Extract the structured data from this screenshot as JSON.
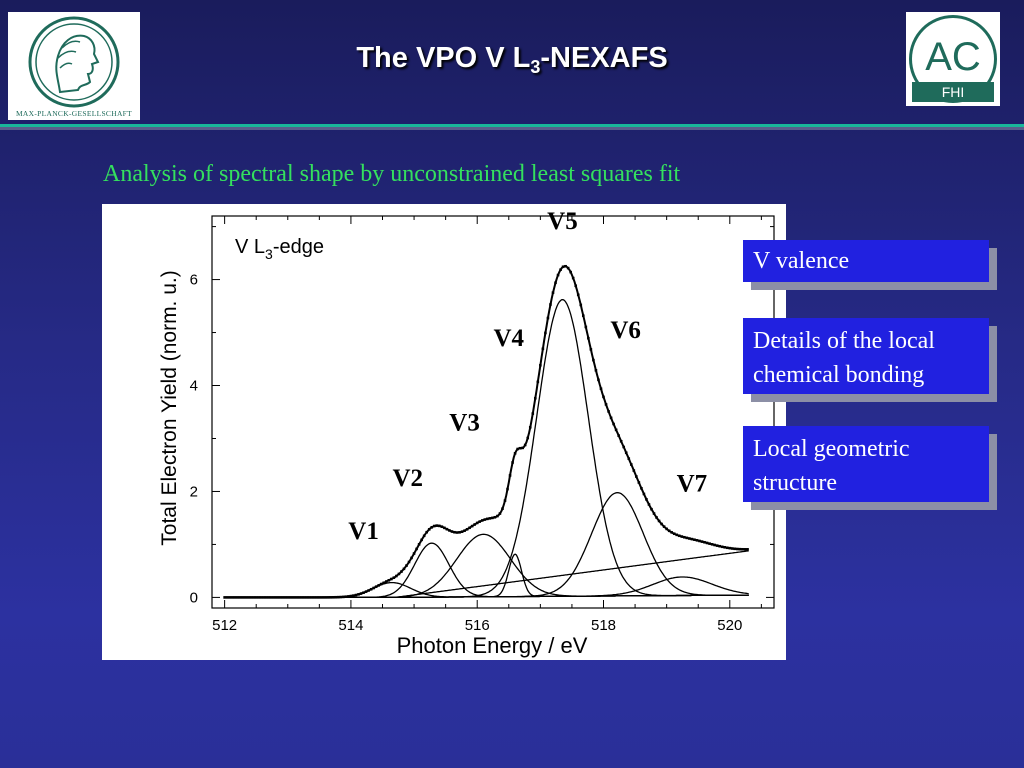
{
  "header": {
    "title_main": "The VPO V L",
    "title_sub": "3",
    "title_tail": "-NEXAFS",
    "left_logo_caption": "MAX-PLANCK-GESELLSCHAFT",
    "right_logo_text": "AC",
    "right_logo_subtext": "FHI"
  },
  "subtitle": "Analysis of spectral shape by unconstrained least squares fit",
  "info_boxes": [
    {
      "text": "V valence"
    },
    {
      "text": "Details of the local chemical bonding"
    },
    {
      "text": "Local geometric structure"
    }
  ],
  "colors": {
    "accent_green": "#34e05e",
    "divider_teal": "#19b89a",
    "box_blue": "#2121e0",
    "logo_teal": "#1f6b5b"
  },
  "chart_data": {
    "type": "line",
    "xlabel": "Photon Energy / eV",
    "ylabel": "Total Electron Yield (norm. u.)",
    "annotation": {
      "main": "V L",
      "sub": "3",
      "tail": "-edge"
    },
    "xlim": [
      511.8,
      520.7
    ],
    "ylim": [
      -0.2,
      7.2
    ],
    "x_ticks": [
      512,
      514,
      516,
      518,
      520
    ],
    "y_ticks": [
      0,
      2,
      4,
      6
    ],
    "grid": false,
    "peaks": [
      {
        "name": "V1",
        "center": 514.65,
        "height": 0.28,
        "width": 0.35,
        "label_x": 514.2,
        "label_y": 1.1
      },
      {
        "name": "V2",
        "center": 515.28,
        "height": 1.02,
        "width": 0.32,
        "label_x": 514.9,
        "label_y": 2.1
      },
      {
        "name": "V3",
        "center": 516.1,
        "height": 1.18,
        "width": 0.5,
        "label_x": 515.8,
        "label_y": 3.15
      },
      {
        "name": "V4",
        "center": 516.6,
        "height": 0.8,
        "width": 0.12,
        "label_x": 516.5,
        "label_y": 4.75
      },
      {
        "name": "V5",
        "center": 517.35,
        "height": 5.6,
        "width": 0.48,
        "label_x": 517.35,
        "label_y": 6.95
      },
      {
        "name": "V6",
        "center": 518.22,
        "height": 1.95,
        "width": 0.48,
        "label_x": 518.35,
        "label_y": 4.9
      },
      {
        "name": "V7",
        "center": 519.25,
        "height": 0.35,
        "width": 0.55,
        "label_x": 519.4,
        "label_y": 2.0
      }
    ],
    "background_step": {
      "y_end": 0.88,
      "start": 514.7,
      "x_end": 520.3
    }
  }
}
